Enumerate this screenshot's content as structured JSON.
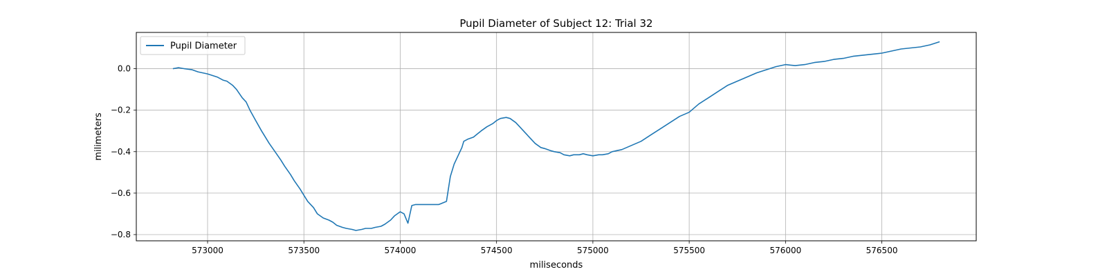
{
  "chart_data": {
    "type": "line",
    "title": "Pupil Diameter of Subject 12: Trial 32",
    "xlabel": "miliseconds",
    "ylabel": "milimeters",
    "xlim": [
      572630,
      576990
    ],
    "ylim": [
      -0.83,
      0.175
    ],
    "xticks": [
      573000,
      573500,
      574000,
      574500,
      575000,
      575500,
      576000,
      576500
    ],
    "xtick_labels": [
      "573000",
      "573500",
      "574000",
      "574500",
      "575000",
      "575500",
      "576000",
      "576500"
    ],
    "yticks": [
      0.0,
      -0.2,
      -0.4,
      -0.6,
      -0.8
    ],
    "ytick_labels": [
      "0.0",
      "−0.2",
      "−0.4",
      "−0.6",
      "−0.8"
    ],
    "grid": true,
    "legend_position": "upper-left",
    "series": [
      {
        "name": "Pupil Diameter",
        "color": "#1f77b4",
        "x": [
          572820,
          572850,
          572880,
          572920,
          572950,
          573000,
          573050,
          573080,
          573100,
          573130,
          573150,
          573180,
          573200,
          573220,
          573250,
          573280,
          573300,
          573320,
          573350,
          573380,
          573400,
          573430,
          573450,
          573480,
          573500,
          573520,
          573550,
          573570,
          573600,
          573630,
          573650,
          573670,
          573700,
          573720,
          573750,
          573770,
          573800,
          573820,
          573850,
          573870,
          573900,
          573920,
          573950,
          573970,
          574000,
          574020,
          574040,
          574060,
          574080,
          574100,
          574150,
          574200,
          574240,
          574260,
          574280,
          574300,
          574320,
          574330,
          574350,
          574380,
          574400,
          574420,
          574450,
          574480,
          574500,
          574520,
          574550,
          574570,
          574600,
          574620,
          574650,
          574680,
          574700,
          574730,
          574750,
          574780,
          574800,
          574830,
          574850,
          574880,
          574900,
          574930,
          574950,
          574970,
          575000,
          575030,
          575050,
          575080,
          575100,
          575150,
          575200,
          575250,
          575300,
          575350,
          575400,
          575450,
          575500,
          575550,
          575600,
          575650,
          575700,
          575750,
          575800,
          575850,
          575900,
          575950,
          576000,
          576050,
          576100,
          576150,
          576200,
          576250,
          576300,
          576350,
          576400,
          576450,
          576500,
          576550,
          576600,
          576650,
          576700,
          576750,
          576800
        ],
        "y": [
          0.0,
          0.005,
          0.0,
          -0.005,
          -0.015,
          -0.025,
          -0.04,
          -0.055,
          -0.06,
          -0.08,
          -0.1,
          -0.14,
          -0.16,
          -0.2,
          -0.25,
          -0.3,
          -0.33,
          -0.36,
          -0.4,
          -0.44,
          -0.47,
          -0.51,
          -0.54,
          -0.58,
          -0.61,
          -0.64,
          -0.67,
          -0.7,
          -0.72,
          -0.73,
          -0.74,
          -0.755,
          -0.765,
          -0.77,
          -0.775,
          -0.78,
          -0.775,
          -0.77,
          -0.77,
          -0.765,
          -0.76,
          -0.75,
          -0.73,
          -0.71,
          -0.69,
          -0.7,
          -0.745,
          -0.66,
          -0.655,
          -0.655,
          -0.655,
          -0.655,
          -0.64,
          -0.52,
          -0.46,
          -0.42,
          -0.38,
          -0.35,
          -0.34,
          -0.33,
          -0.315,
          -0.3,
          -0.28,
          -0.265,
          -0.25,
          -0.24,
          -0.235,
          -0.24,
          -0.26,
          -0.28,
          -0.31,
          -0.34,
          -0.36,
          -0.38,
          -0.385,
          -0.395,
          -0.4,
          -0.405,
          -0.415,
          -0.42,
          -0.415,
          -0.415,
          -0.41,
          -0.415,
          -0.42,
          -0.415,
          -0.415,
          -0.41,
          -0.4,
          -0.39,
          -0.37,
          -0.35,
          -0.32,
          -0.29,
          -0.26,
          -0.23,
          -0.21,
          -0.17,
          -0.14,
          -0.11,
          -0.08,
          -0.06,
          -0.04,
          -0.02,
          -0.005,
          0.01,
          0.02,
          0.015,
          0.02,
          0.03,
          0.035,
          0.045,
          0.05,
          0.06,
          0.065,
          0.07,
          0.075,
          0.085,
          0.095,
          0.1,
          0.105,
          0.115,
          0.13
        ]
      }
    ]
  }
}
